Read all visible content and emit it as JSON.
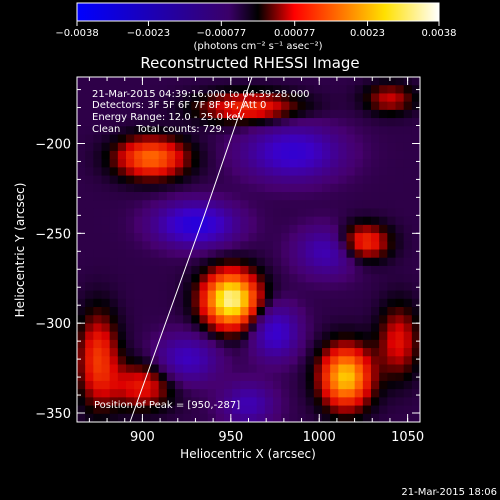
{
  "chart_data": {
    "type": "heatmap",
    "title": "Reconstructed RHESSI Image",
    "xlabel": "Heliocentric X (arcsec)",
    "ylabel": "Heliocentric Y (arcsec)",
    "xlim": [
      863,
      1057
    ],
    "ylim": [
      -355,
      -163
    ],
    "x_ticks": [
      900,
      950,
      1000,
      1050
    ],
    "y_ticks": [
      -200,
      -250,
      -300,
      -350
    ],
    "colorbar": {
      "range": [
        -0.0038,
        0.0038
      ],
      "ticks": [
        "-0.0038",
        "-0.0023",
        "-0.00077",
        "0.00077",
        "0.0023",
        "0.0038"
      ],
      "unit_label": "(photons cm⁻² s⁻¹ asec⁻²)"
    },
    "annotations": [
      "21-Mar-2015 04:39:16.000 to 04:39:28.000",
      "Detectors: 3F 5F 6F 7F 8F 9F, Att 0",
      "Energy Range: 12.0 - 25.0 keV",
      "Clean     Total counts: 729."
    ],
    "peak_label": "Position of Peak = [950,-287]",
    "peak": [
      950,
      -287
    ],
    "limb_line": [
      [
        893,
        -355
      ],
      [
        935,
        -240
      ],
      [
        962,
        -163
      ]
    ],
    "sources": [
      {
        "x": 950,
        "y": -287,
        "amp": 0.0038,
        "sx": 11,
        "sy": 11
      },
      {
        "x": 1015,
        "y": -330,
        "amp": 0.003,
        "sx": 10,
        "sy": 12
      },
      {
        "x": 905,
        "y": -208,
        "amp": 0.0022,
        "sx": 14,
        "sy": 8
      },
      {
        "x": 1025,
        "y": -255,
        "amp": 0.0018,
        "sx": 10,
        "sy": 7
      },
      {
        "x": 960,
        "y": -180,
        "amp": 0.0016,
        "sx": 20,
        "sy": 6
      },
      {
        "x": 875,
        "y": -320,
        "amp": 0.0017,
        "sx": 8,
        "sy": 18
      },
      {
        "x": 900,
        "y": -335,
        "amp": 0.0014,
        "sx": 12,
        "sy": 9
      },
      {
        "x": 1045,
        "y": -310,
        "amp": 0.0013,
        "sx": 8,
        "sy": 14
      },
      {
        "x": 1040,
        "y": -175,
        "amp": 0.0011,
        "sx": 10,
        "sy": 6
      },
      {
        "x": 930,
        "y": -245,
        "amp": -0.0022,
        "sx": 15,
        "sy": 8
      },
      {
        "x": 985,
        "y": -205,
        "amp": -0.0018,
        "sx": 18,
        "sy": 10
      },
      {
        "x": 975,
        "y": -305,
        "amp": -0.0017,
        "sx": 9,
        "sy": 10
      },
      {
        "x": 1005,
        "y": -260,
        "amp": -0.0013,
        "sx": 12,
        "sy": 9
      },
      {
        "x": 925,
        "y": -320,
        "amp": -0.0014,
        "sx": 12,
        "sy": 9
      },
      {
        "x": 960,
        "y": -345,
        "amp": -0.0012,
        "sx": 10,
        "sy": 8
      }
    ]
  },
  "footer_timestamp": "21-Mar-2015 18:06"
}
